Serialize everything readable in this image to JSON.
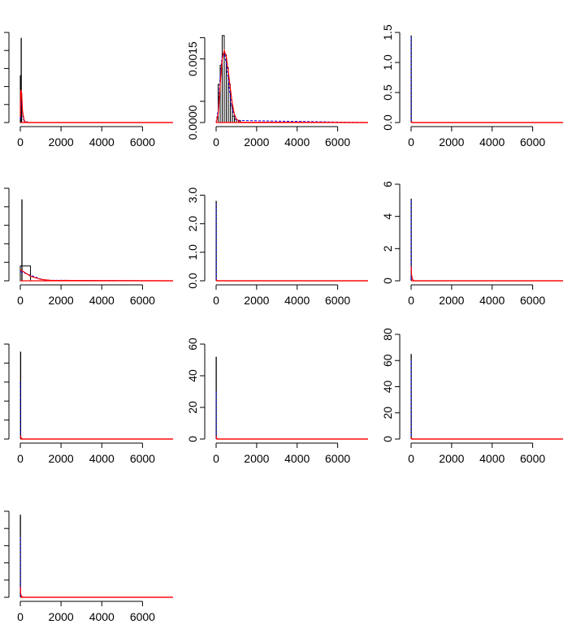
{
  "colors": {
    "axis": "#000000",
    "hist": "#000000",
    "density_fit": "#ff0000",
    "density_alt": "#0000ff",
    "density_mix": "#cc00cc"
  },
  "chart_data": [
    {
      "type": "histogram",
      "xlim": [
        0,
        7500
      ],
      "x_ticks": [
        "0",
        "2000",
        "4000",
        "6000"
      ],
      "ylim": [
        0,
        5
      ],
      "y_ticks": [
        "",
        "",
        "",
        "",
        "",
        ""
      ],
      "bins": [
        {
          "x0": 0,
          "x1": 30,
          "y": 2.6
        },
        {
          "x0": 30,
          "x1": 60,
          "y": 1.6
        }
      ],
      "spike": {
        "x": 45,
        "y": 4.7
      },
      "curve_fit": [
        [
          0,
          0.3
        ],
        [
          20,
          1.8
        ],
        [
          60,
          1.7
        ],
        [
          110,
          0.6
        ],
        [
          200,
          0.05
        ],
        [
          400,
          0
        ],
        [
          7500,
          0
        ]
      ],
      "curve_alt": [
        [
          0,
          0.2
        ],
        [
          25,
          1.2
        ],
        [
          70,
          1.0
        ],
        [
          150,
          0.15
        ],
        [
          400,
          0
        ],
        [
          7500,
          0
        ]
      ]
    },
    {
      "type": "histogram",
      "xlim": [
        0,
        7500
      ],
      "x_ticks": [
        "0",
        "2000",
        "4000",
        "6000"
      ],
      "ylim": [
        0,
        0.0022
      ],
      "y_ticks": [
        "0.0000",
        "",
        "0.0015",
        ""
      ],
      "y_tick_values": [
        0,
        0.0005,
        0.0015,
        0.002
      ],
      "bins": [
        {
          "x0": 100,
          "x1": 200,
          "y": 0.0009
        },
        {
          "x0": 200,
          "x1": 300,
          "y": 0.00135
        },
        {
          "x0": 300,
          "x1": 400,
          "y": 0.00205
        },
        {
          "x0": 400,
          "x1": 500,
          "y": 0.0016
        },
        {
          "x0": 500,
          "x1": 600,
          "y": 0.0013
        },
        {
          "x0": 600,
          "x1": 700,
          "y": 0.0009
        },
        {
          "x0": 700,
          "x1": 800,
          "y": 0.0004
        },
        {
          "x0": 800,
          "x1": 900,
          "y": 0.00015
        },
        {
          "x0": 900,
          "x1": 1000,
          "y": 8e-05
        },
        {
          "x0": 1100,
          "x1": 1200,
          "y": 5e-05
        }
      ],
      "curve_fit": [
        [
          0,
          0
        ],
        [
          100,
          0.0002
        ],
        [
          200,
          0.0009
        ],
        [
          300,
          0.0015
        ],
        [
          400,
          0.0017
        ],
        [
          500,
          0.00155
        ],
        [
          600,
          0.0012
        ],
        [
          700,
          0.0008
        ],
        [
          800,
          0.00045
        ],
        [
          900,
          0.0002
        ],
        [
          1000,
          8e-05
        ],
        [
          1200,
          1e-05
        ],
        [
          7500,
          0
        ]
      ],
      "curve_alt": [
        [
          0,
          0
        ],
        [
          100,
          0.0003
        ],
        [
          200,
          0.0011
        ],
        [
          300,
          0.0016
        ],
        [
          400,
          0.00165
        ],
        [
          500,
          0.0014
        ],
        [
          600,
          0.001
        ],
        [
          700,
          0.0006
        ],
        [
          800,
          0.0003
        ],
        [
          1000,
          5e-05
        ],
        [
          7500,
          0
        ]
      ]
    },
    {
      "type": "histogram",
      "xlim": [
        0,
        7500
      ],
      "x_ticks": [
        "0",
        "2000",
        "4000",
        "6000"
      ],
      "ylim": [
        0,
        1.5
      ],
      "y_ticks": [
        "0.0",
        "0.5",
        "1.0",
        "1.5"
      ],
      "y_tick_values": [
        0,
        0.5,
        1.0,
        1.5
      ],
      "bins": [],
      "spike": {
        "x": 5,
        "y": 1.45
      },
      "curve_fit": [
        [
          0,
          0.02
        ],
        [
          40,
          0.005
        ],
        [
          120,
          0
        ],
        [
          7500,
          0
        ]
      ],
      "curve_alt": [
        [
          0,
          1.42
        ],
        [
          6,
          0.02
        ],
        [
          100,
          0
        ],
        [
          7500,
          0
        ]
      ]
    },
    {
      "type": "histogram",
      "xlim": [
        0,
        7500
      ],
      "x_ticks": [
        "0",
        "2000",
        "4000",
        "6000"
      ],
      "ylim": [
        0,
        5
      ],
      "y_ticks": [
        "",
        "",
        "",
        "",
        "",
        ""
      ],
      "bins": [
        {
          "x0": 0,
          "x1": 500,
          "y": 0.8
        }
      ],
      "spike": {
        "x": 80,
        "y": 4.4
      },
      "curve_fit": [
        [
          0,
          0.6
        ],
        [
          500,
          0.25
        ],
        [
          1000,
          0.08
        ],
        [
          1500,
          0.02
        ],
        [
          7500,
          0
        ]
      ],
      "curve_alt": [
        [
          0,
          0.5
        ],
        [
          500,
          0.3
        ],
        [
          1000,
          0.1
        ],
        [
          1200,
          0.03
        ],
        [
          7500,
          0
        ]
      ]
    },
    {
      "type": "histogram",
      "xlim": [
        0,
        7500
      ],
      "x_ticks": [
        "0",
        "2000",
        "4000",
        "6000"
      ],
      "ylim": [
        0,
        3.3
      ],
      "y_ticks": [
        "0.0",
        "1.0",
        "2.0",
        "3.0"
      ],
      "y_tick_values": [
        0,
        1.0,
        2.0,
        3.0
      ],
      "bins": [],
      "spike": {
        "x": 5,
        "y": 2.8
      },
      "curve_fit": [
        [
          0,
          0.05
        ],
        [
          30,
          0.01
        ],
        [
          100,
          0
        ],
        [
          7500,
          0
        ]
      ],
      "curve_alt": [
        [
          0,
          2.7
        ],
        [
          6,
          0.05
        ],
        [
          100,
          0
        ],
        [
          7500,
          0
        ]
      ]
    },
    {
      "type": "histogram",
      "xlim": [
        0,
        7500
      ],
      "x_ticks": [
        "0",
        "2000",
        "4000",
        "6000"
      ],
      "ylim": [
        0,
        6
      ],
      "y_ticks": [
        "0",
        "2",
        "4",
        "6"
      ],
      "y_tick_values": [
        0,
        2,
        4,
        6
      ],
      "bins": [],
      "spike": {
        "x": 5,
        "y": 5.1
      },
      "curve_fit": [
        [
          0,
          0.9
        ],
        [
          20,
          0.4
        ],
        [
          60,
          0.1
        ],
        [
          150,
          0
        ],
        [
          7500,
          0
        ]
      ],
      "curve_alt": [
        [
          0,
          5.0
        ],
        [
          6,
          0.1
        ],
        [
          100,
          0
        ],
        [
          7500,
          0
        ]
      ]
    },
    {
      "type": "histogram",
      "xlim": [
        0,
        7500
      ],
      "x_ticks": [
        "0",
        "2000",
        "4000",
        "6000"
      ],
      "ylim": [
        0,
        5
      ],
      "y_ticks": [
        "",
        "",
        "",
        "",
        "",
        ""
      ],
      "bins": [],
      "spike": {
        "x": 15,
        "y": 4.6
      },
      "curve_fit": [
        [
          0,
          0.2
        ],
        [
          30,
          0.08
        ],
        [
          100,
          0
        ],
        [
          7500,
          0
        ]
      ],
      "curve_alt": [
        [
          0,
          3.0
        ],
        [
          8,
          0.05
        ],
        [
          100,
          0
        ],
        [
          7500,
          0
        ]
      ]
    },
    {
      "type": "histogram",
      "xlim": [
        0,
        7500
      ],
      "x_ticks": [
        "0",
        "2000",
        "4000",
        "6000"
      ],
      "ylim": [
        0,
        60
      ],
      "y_ticks": [
        "0",
        "20",
        "40",
        "60"
      ],
      "y_tick_values": [
        0,
        20,
        40,
        60
      ],
      "bins": [],
      "spike": {
        "x": 5,
        "y": 52
      },
      "curve_fit": [
        [
          0,
          2
        ],
        [
          20,
          0.5
        ],
        [
          80,
          0
        ],
        [
          7500,
          0
        ]
      ],
      "curve_alt": [
        [
          0,
          30
        ],
        [
          6,
          0.5
        ],
        [
          100,
          0
        ],
        [
          7500,
          0
        ]
      ]
    },
    {
      "type": "histogram",
      "xlim": [
        0,
        7500
      ],
      "x_ticks": [
        "0",
        "2000",
        "4000",
        "6000"
      ],
      "ylim": [
        0,
        80
      ],
      "y_ticks": [
        "0",
        "20",
        "40",
        "60",
        "80"
      ],
      "y_tick_values": [
        0,
        20,
        40,
        60,
        80
      ],
      "bins": [],
      "spike": {
        "x": 5,
        "y": 65
      },
      "curve_fit": [
        [
          0,
          1.5
        ],
        [
          20,
          0.4
        ],
        [
          80,
          0
        ],
        [
          7500,
          0
        ]
      ],
      "curve_alt": [
        [
          0,
          60
        ],
        [
          6,
          0.5
        ],
        [
          100,
          0
        ],
        [
          7500,
          0
        ]
      ]
    },
    {
      "type": "histogram",
      "xlim": [
        0,
        7500
      ],
      "x_ticks": [
        "0",
        "2000",
        "4000",
        "6000"
      ],
      "ylim": [
        0,
        5
      ],
      "y_ticks": [
        "",
        "",
        "",
        "",
        "",
        ""
      ],
      "bins": [],
      "spike": {
        "x": 5,
        "y": 4.8
      },
      "curve_fit": [
        [
          0,
          0.6
        ],
        [
          20,
          0.2
        ],
        [
          60,
          0.05
        ],
        [
          150,
          0
        ],
        [
          7500,
          0
        ]
      ],
      "curve_alt": [
        [
          0,
          3.5
        ],
        [
          6,
          0.05
        ],
        [
          100,
          0
        ],
        [
          7500,
          0
        ]
      ]
    }
  ]
}
